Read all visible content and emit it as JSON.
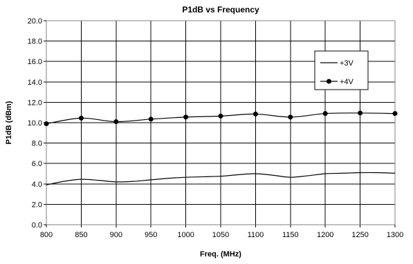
{
  "chart_data": {
    "type": "line",
    "title": "P1dB vs Frequency",
    "xlabel": "Freq. (MHz)",
    "ylabel": "P1dB (dBm)",
    "xlim": [
      800,
      1300
    ],
    "ylim": [
      0,
      20
    ],
    "x_ticks": [
      "800",
      "850",
      "900",
      "950",
      "1000",
      "1050",
      "1100",
      "1150",
      "1200",
      "1250",
      "1300"
    ],
    "y_ticks": [
      "0.0",
      "2.0",
      "4.0",
      "6.0",
      "8.0",
      "10.0",
      "12.0",
      "14.0",
      "16.0",
      "18.0",
      "20.0"
    ],
    "grid": true,
    "legend_position": "right",
    "series": [
      {
        "name": "+3V",
        "marker": "none",
        "color": "#000000",
        "x": [
          800,
          825,
          850,
          875,
          900,
          925,
          950,
          975,
          1000,
          1025,
          1050,
          1075,
          1100,
          1125,
          1150,
          1175,
          1200,
          1225,
          1250,
          1275,
          1300
        ],
        "y": [
          3.9,
          4.25,
          4.45,
          4.35,
          4.2,
          4.25,
          4.4,
          4.55,
          4.65,
          4.7,
          4.75,
          4.9,
          5.0,
          4.85,
          4.65,
          4.8,
          5.0,
          5.05,
          5.1,
          5.1,
          5.05
        ]
      },
      {
        "name": "+4V",
        "marker": "circle",
        "color": "#000000",
        "x": [
          800,
          850,
          900,
          950,
          1000,
          1050,
          1100,
          1150,
          1200,
          1250,
          1300
        ],
        "y": [
          9.9,
          10.45,
          10.1,
          10.35,
          10.55,
          10.65,
          10.85,
          10.55,
          10.9,
          10.95,
          10.9
        ]
      }
    ]
  }
}
